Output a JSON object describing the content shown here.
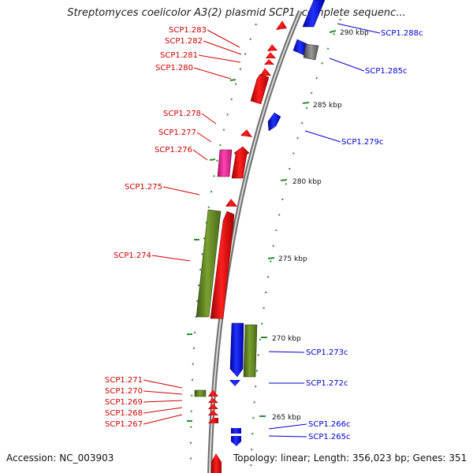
{
  "title": "Streptomyces coelicolor A3(2) plasmid SCP1, complete sequenc...",
  "footer": {
    "accession": "Accession: NC_003903",
    "summary": "Topology: linear; Length: 356,023 bp; Genes: 351"
  },
  "scale_labels": [
    "290 kbp",
    "285 kbp",
    "280 kbp",
    "275 kbp",
    "270 kbp",
    "265 kbp"
  ],
  "colors": {
    "forward_gene": "#ff0000",
    "reverse_gene": "#0000ff",
    "olive_feature": "#6b8e23",
    "pink_feature": "#ff33aa",
    "gray_feature": "#7a7a7a",
    "backbone": "#999999",
    "tick": "#2e8b2e",
    "left_label": "#cc0000",
    "right_label": "#0000cc"
  },
  "left_labels": [
    "SCP1.283",
    "SCP1.282",
    "SCP1.281",
    "SCP1.280",
    "SCP1.278",
    "SCP1.277",
    "SCP1.276",
    "SCP1.275",
    "SCP1.274",
    "SCP1.271",
    "SCP1.270",
    "SCP1.269",
    "SCP1.268",
    "SCP1.267"
  ],
  "right_labels": [
    "SCP1.288c",
    "SCP1.285c",
    "SCP1.279c",
    "SCP1.273c",
    "SCP1.272c",
    "SCP1.266c",
    "SCP1.265c"
  ]
}
